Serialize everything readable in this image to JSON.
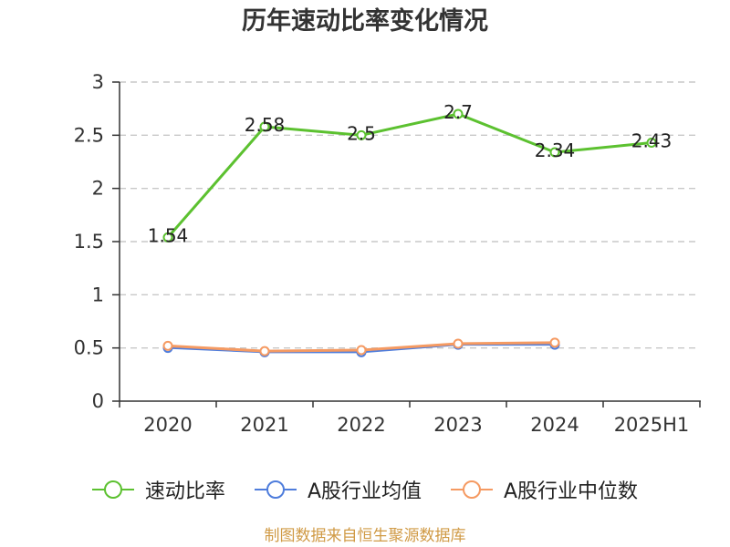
{
  "chart_data": {
    "type": "line",
    "title": "历年速动比率变化情况",
    "xlabel": "",
    "ylabel": "",
    "categories": [
      "2020",
      "2021",
      "2022",
      "2023",
      "2024",
      "2025H1"
    ],
    "ylim": [
      0,
      3
    ],
    "yticks": [
      0,
      0.5,
      1,
      1.5,
      2,
      2.5,
      3
    ],
    "grid": true,
    "legend_position": "bottom",
    "series": [
      {
        "name": "速动比率",
        "values": [
          1.54,
          2.58,
          2.5,
          2.7,
          2.34,
          2.43
        ],
        "color": "#5cc130",
        "show_labels": true
      },
      {
        "name": "A股行业均值",
        "values": [
          0.5,
          0.46,
          0.46,
          0.53,
          0.53,
          null
        ],
        "color": "#4f7ddc",
        "show_labels": false
      },
      {
        "name": "A股行业中位数",
        "values": [
          0.52,
          0.47,
          0.48,
          0.54,
          0.55,
          null
        ],
        "color": "#f59a62",
        "show_labels": false
      }
    ]
  },
  "footer": {
    "source_note": "制图数据来自恒生聚源数据库"
  }
}
